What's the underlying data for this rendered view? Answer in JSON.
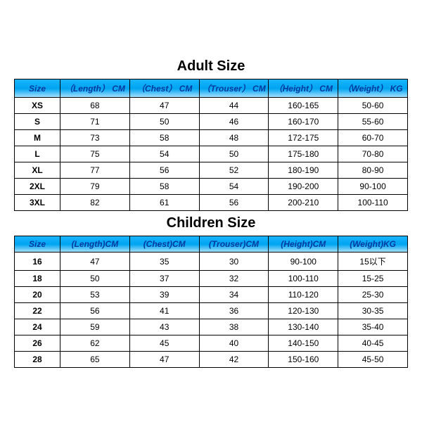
{
  "adult": {
    "title": "Adult Size",
    "columns": [
      "Size",
      "（Length） CM",
      "（Chest） CM",
      "（Trouser） CM",
      "（Height） CM",
      "（Weight） KG"
    ],
    "rows": [
      [
        "XS",
        "68",
        "47",
        "44",
        "160-165",
        "50-60"
      ],
      [
        "S",
        "71",
        "50",
        "46",
        "160-170",
        "55-60"
      ],
      [
        "M",
        "73",
        "58",
        "48",
        "172-175",
        "60-70"
      ],
      [
        "L",
        "75",
        "54",
        "50",
        "175-180",
        "70-80"
      ],
      [
        "XL",
        "77",
        "56",
        "52",
        "180-190",
        "80-90"
      ],
      [
        "2XL",
        "79",
        "58",
        "54",
        "190-200",
        "90-100"
      ],
      [
        "3XL",
        "82",
        "61",
        "56",
        "200-210",
        "100-110"
      ]
    ]
  },
  "children": {
    "title": "Children Size",
    "columns": [
      "Size",
      "(Length)CM",
      "(Chest)CM",
      "(Trouser)CM",
      "(Height)CM",
      "(Weight)KG"
    ],
    "rows": [
      [
        "16",
        "47",
        "35",
        "30",
        "90-100",
        "15以下"
      ],
      [
        "18",
        "50",
        "37",
        "32",
        "100-110",
        "15-25"
      ],
      [
        "20",
        "53",
        "39",
        "34",
        "110-120",
        "25-30"
      ],
      [
        "22",
        "56",
        "41",
        "36",
        "120-130",
        "30-35"
      ],
      [
        "24",
        "59",
        "43",
        "38",
        "130-140",
        "35-40"
      ],
      [
        "26",
        "62",
        "45",
        "40",
        "140-150",
        "40-45"
      ],
      [
        "28",
        "65",
        "47",
        "42",
        "150-160",
        "45-50"
      ]
    ]
  },
  "styling": {
    "header_gradient": [
      "#1ab4ff",
      "#00a4f0",
      "#b0e4ff"
    ],
    "header_text_color": "#003a9e",
    "border_color": "#000000",
    "background_color": "#ffffff",
    "title_fontsize": 20,
    "cell_fontsize": 12,
    "col_size_width": 60
  }
}
